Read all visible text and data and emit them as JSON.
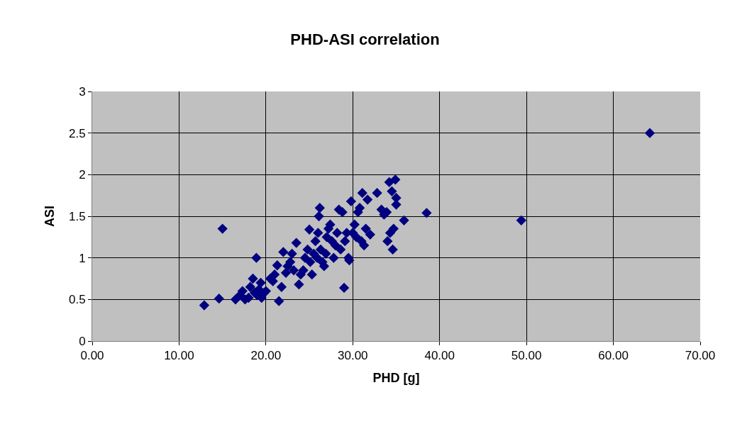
{
  "chart_data": {
    "type": "scatter",
    "title": "PHD-ASI correlation",
    "xlabel": "PHD [g]",
    "ylabel": "ASI",
    "x": [
      12.9,
      14.6,
      15.0,
      16.5,
      17.0,
      17.3,
      17.6,
      18.0,
      18.2,
      18.5,
      18.7,
      18.9,
      19.0,
      19.2,
      19.4,
      19.5,
      19.8,
      20.0,
      20.5,
      20.8,
      21.0,
      21.3,
      21.5,
      21.8,
      22.0,
      22.3,
      22.5,
      22.8,
      23.0,
      23.2,
      23.5,
      23.8,
      24.0,
      24.3,
      24.5,
      24.8,
      25.0,
      25.1,
      25.3,
      25.5,
      25.7,
      25.9,
      26.0,
      26.1,
      26.2,
      26.3,
      26.5,
      26.7,
      26.9,
      27.0,
      27.2,
      27.4,
      27.6,
      27.8,
      28.0,
      28.2,
      28.4,
      28.6,
      28.8,
      29.0,
      29.1,
      29.3,
      29.5,
      29.6,
      29.8,
      30.0,
      30.2,
      30.4,
      30.6,
      30.8,
      31.0,
      31.1,
      31.3,
      31.5,
      31.7,
      32.0,
      32.8,
      33.3,
      33.6,
      33.9,
      34.0,
      34.2,
      34.3,
      34.5,
      34.6,
      34.7,
      34.9,
      35.0,
      35.0,
      35.9,
      38.5,
      49.4,
      64.2
    ],
    "series": [
      {
        "color": "#000080",
        "values": [
          0.43,
          0.51,
          1.35,
          0.5,
          0.55,
          0.6,
          0.5,
          0.52,
          0.65,
          0.75,
          0.58,
          1.0,
          0.55,
          0.62,
          0.7,
          0.52,
          0.58,
          0.6,
          0.75,
          0.72,
          0.8,
          0.91,
          0.48,
          0.65,
          1.07,
          0.82,
          0.9,
          0.95,
          1.05,
          0.85,
          1.18,
          0.68,
          0.8,
          0.85,
          1.0,
          1.1,
          1.34,
          0.95,
          0.8,
          1.05,
          1.2,
          1.0,
          1.3,
          1.5,
          1.6,
          1.1,
          0.95,
          0.9,
          1.05,
          1.25,
          1.35,
          1.4,
          1.2,
          1.0,
          1.15,
          1.3,
          1.58,
          1.1,
          1.55,
          0.64,
          1.2,
          1.3,
          1.0,
          0.97,
          1.68,
          1.3,
          1.4,
          1.25,
          1.55,
          1.6,
          1.2,
          1.78,
          1.15,
          1.35,
          1.7,
          1.28,
          1.78,
          1.58,
          1.52,
          1.55,
          1.2,
          1.91,
          1.3,
          1.8,
          1.1,
          1.35,
          1.94,
          1.72,
          1.64,
          1.45,
          1.54,
          1.45,
          2.5
        ]
      }
    ],
    "xlim": [
      0,
      70
    ],
    "xticks": [
      {
        "value": 0,
        "label": "0.00"
      },
      {
        "value": 10,
        "label": "10.00"
      },
      {
        "value": 20,
        "label": "20.00"
      },
      {
        "value": 30,
        "label": "30.00"
      },
      {
        "value": 40,
        "label": "40.00"
      },
      {
        "value": 50,
        "label": "50.00"
      },
      {
        "value": 60,
        "label": "60.00"
      },
      {
        "value": 70,
        "label": "70.00"
      }
    ],
    "ylim": [
      0,
      3
    ],
    "yticks": [
      0,
      0.5,
      1,
      1.5,
      2,
      2.5,
      3
    ],
    "grid": true,
    "marker": "diamond"
  }
}
